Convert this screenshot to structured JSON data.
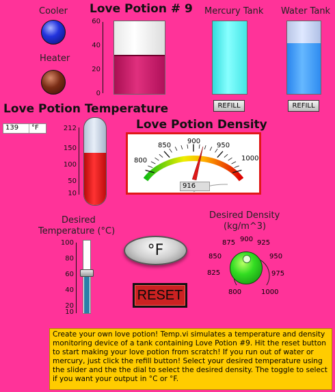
{
  "leds": {
    "cooler_label": "Cooler",
    "heater_label": "Heater"
  },
  "potion_tank": {
    "title": "Love Potion # 9",
    "ticks": [
      "60",
      "40",
      "20",
      "0"
    ],
    "level_fraction": 0.52
  },
  "mercury_tank": {
    "title": "Mercury Tank",
    "refill_label": "REFILL",
    "level_fraction": 1.0
  },
  "water_tank": {
    "title": "Water Tank",
    "refill_label": "REFILL",
    "level_fraction": 0.7
  },
  "temperature": {
    "title": "Love Potion Temperature",
    "value": "139",
    "unit": "°F",
    "ticks": [
      "212",
      "150",
      "100",
      "50",
      "10"
    ],
    "fill_fraction": 0.6
  },
  "density": {
    "title": "Love Potion Density",
    "ticks": [
      "800",
      "850",
      "900",
      "950",
      "1000"
    ],
    "value": "916",
    "needle_value": 916
  },
  "desired_temperature": {
    "label_line1": "Desired",
    "label_line2": "Temperature (°C)",
    "ticks": [
      "100",
      "80",
      "60",
      "40",
      "20",
      "10"
    ],
    "slider_value": 60
  },
  "unit_toggle": {
    "label": "°F"
  },
  "reset_button": {
    "label": "RESET"
  },
  "desired_density": {
    "label_line1": "Desired Density",
    "label_line2": "(kg/m^3)",
    "ticks": [
      "800",
      "825",
      "850",
      "875",
      "900",
      "925",
      "950",
      "975",
      "1000"
    ]
  },
  "description": "Create your own love potion!  Temp.vi simulates a temperature and density monitoring device of a tank containing Love Potion #9. Hit the reset button to start making your love potion from scratch! If you run out of water or mercury, just click the refill button! Select  your desired temperature using the slider and the the dial to select the desired density. The toggle to select if you want your output  in °C or °F.",
  "colors": {
    "background": "#ff3399",
    "potion": "#cc1166",
    "mercury": "#66ffff",
    "water": "#3399ff",
    "thermo_red": "#dd1111",
    "reset_bg": "#cc2222",
    "note_bg": "#ffcc00"
  }
}
